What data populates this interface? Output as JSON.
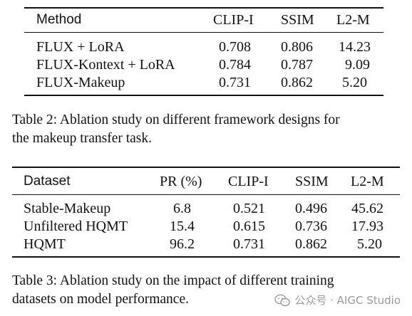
{
  "table2": {
    "headers": [
      "Method",
      "CLIP-I",
      "SSIM",
      "L2-M"
    ],
    "rows": [
      [
        "FLUX + LoRA",
        "0.708",
        "0.806",
        "14.23"
      ],
      [
        "FLUX-Kontext + LoRA",
        "0.784",
        "0.787",
        "9.09"
      ],
      [
        "FLUX-Makeup",
        "0.731",
        "0.862",
        "5.20"
      ]
    ],
    "caption_line1": "Table 2: Ablation study on different framework designs for",
    "caption_line2": "the makeup transfer task."
  },
  "table3": {
    "headers": [
      "Dataset",
      "PR (%)",
      "CLIP-I",
      "SSIM",
      "L2-M"
    ],
    "rows": [
      [
        "Stable-Makeup",
        "6.8",
        "0.521",
        "0.496",
        "45.62"
      ],
      [
        "Unfiltered HQMT",
        "15.4",
        "0.615",
        "0.736",
        "17.93"
      ],
      [
        "HQMT",
        "96.2",
        "0.731",
        "0.862",
        "5.20"
      ]
    ],
    "caption_line1": "Table 3: Ablation study on the impact of different training",
    "caption_line2": "datasets on model performance."
  },
  "watermark": {
    "text": "公众号 · AIGC Studio",
    "icon": "wechat-icon"
  }
}
